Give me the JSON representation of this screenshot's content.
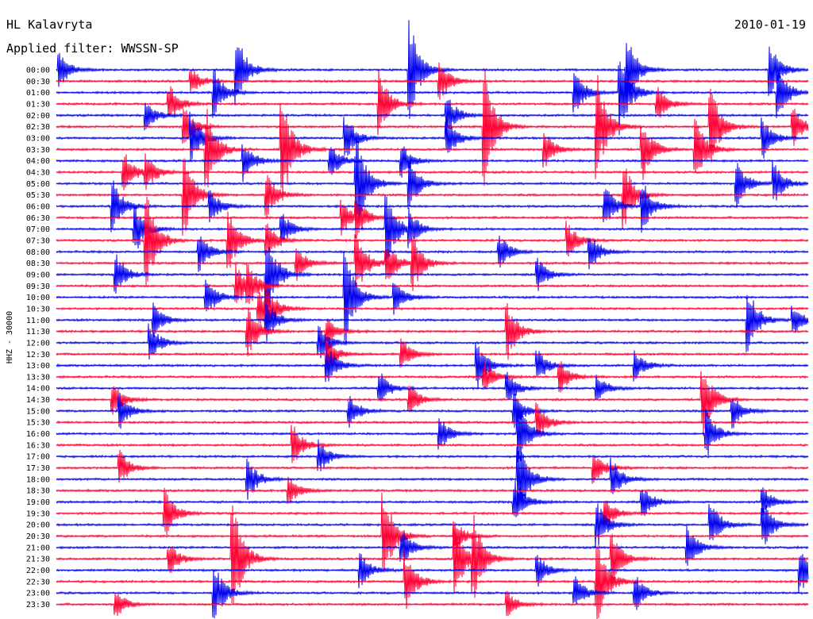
{
  "header": {
    "station": "HL Kalavryta",
    "date": "2010-01-19",
    "filter": "Applied filter: WWSSN-SP"
  },
  "chart_data": {
    "type": "line",
    "title": "HL Kalavryta",
    "subtitle": "Applied filter: WWSSN-SP",
    "ylabel": "HHZ - 30000",
    "row_labels": [
      "00:00",
      "00:30",
      "01:00",
      "01:30",
      "02:00",
      "02:30",
      "03:00",
      "03:30",
      "04:00",
      "04:30",
      "05:00",
      "05:30",
      "06:00",
      "06:30",
      "07:00",
      "07:30",
      "08:00",
      "08:30",
      "09:00",
      "09:30",
      "10:00",
      "10:30",
      "11:00",
      "11:30",
      "12:00",
      "12:30",
      "13:00",
      "13:30",
      "14:00",
      "14:30",
      "15:00",
      "15:30",
      "16:00",
      "16:30",
      "17:00",
      "17:30",
      "18:00",
      "18:30",
      "19:00",
      "19:30",
      "20:00",
      "20:30",
      "21:00",
      "21:30",
      "22:00",
      "22:30",
      "23:00",
      "23:30"
    ],
    "series_colors": [
      "#0000ee",
      "#ff0033"
    ],
    "events": [
      {
        "row": 0,
        "t": 0.005,
        "amp": 1.0
      },
      {
        "row": 0,
        "t": 0.24,
        "amp": 2.2
      },
      {
        "row": 0,
        "t": 0.47,
        "amp": 3.0
      },
      {
        "row": 0,
        "t": 0.76,
        "amp": 2.0
      },
      {
        "row": 0,
        "t": 0.95,
        "amp": 1.5
      },
      {
        "row": 1,
        "t": 0.18,
        "amp": 0.8
      },
      {
        "row": 1,
        "t": 0.51,
        "amp": 1.2
      },
      {
        "row": 2,
        "t": 0.21,
        "amp": 1.5
      },
      {
        "row": 2,
        "t": 0.69,
        "amp": 1.3
      },
      {
        "row": 2,
        "t": 0.75,
        "amp": 2.5
      },
      {
        "row": 2,
        "t": 0.96,
        "amp": 1.6
      },
      {
        "row": 3,
        "t": 0.15,
        "amp": 1.2
      },
      {
        "row": 3,
        "t": 0.43,
        "amp": 2.0
      },
      {
        "row": 3,
        "t": 0.8,
        "amp": 1.0
      },
      {
        "row": 4,
        "t": 0.12,
        "amp": 0.9
      },
      {
        "row": 4,
        "t": 0.52,
        "amp": 1.2
      },
      {
        "row": 5,
        "t": 0.17,
        "amp": 1.2
      },
      {
        "row": 5,
        "t": 0.57,
        "amp": 3.5
      },
      {
        "row": 5,
        "t": 0.72,
        "amp": 3.0
      },
      {
        "row": 5,
        "t": 0.87,
        "amp": 2.5
      },
      {
        "row": 5,
        "t": 0.98,
        "amp": 1.2
      },
      {
        "row": 6,
        "t": 0.18,
        "amp": 1.5
      },
      {
        "row": 6,
        "t": 0.385,
        "amp": 1.4
      },
      {
        "row": 6,
        "t": 0.52,
        "amp": 1.2
      },
      {
        "row": 6,
        "t": 0.94,
        "amp": 1.3
      },
      {
        "row": 7,
        "t": 0.2,
        "amp": 2.5
      },
      {
        "row": 7,
        "t": 0.3,
        "amp": 3.5
      },
      {
        "row": 7,
        "t": 0.65,
        "amp": 1.1
      },
      {
        "row": 7,
        "t": 0.78,
        "amp": 1.8
      },
      {
        "row": 7,
        "t": 0.85,
        "amp": 2.0
      },
      {
        "row": 8,
        "t": 0.25,
        "amp": 1.2
      },
      {
        "row": 8,
        "t": 0.365,
        "amp": 1.0
      },
      {
        "row": 8,
        "t": 0.46,
        "amp": 1.0
      },
      {
        "row": 9,
        "t": 0.09,
        "amp": 1.3
      },
      {
        "row": 9,
        "t": 0.12,
        "amp": 1.0
      },
      {
        "row": 10,
        "t": 0.4,
        "amp": 3.0
      },
      {
        "row": 10,
        "t": 0.47,
        "amp": 1.5
      },
      {
        "row": 10,
        "t": 0.905,
        "amp": 1.4
      },
      {
        "row": 10,
        "t": 0.955,
        "amp": 1.2
      },
      {
        "row": 11,
        "t": 0.17,
        "amp": 2.5
      },
      {
        "row": 11,
        "t": 0.28,
        "amp": 1.3
      },
      {
        "row": 11,
        "t": 0.755,
        "amp": 2.0
      },
      {
        "row": 12,
        "t": 0.075,
        "amp": 1.6
      },
      {
        "row": 12,
        "t": 0.205,
        "amp": 1.0
      },
      {
        "row": 12,
        "t": 0.73,
        "amp": 1.3
      },
      {
        "row": 12,
        "t": 0.78,
        "amp": 1.5
      },
      {
        "row": 13,
        "t": 0.38,
        "amp": 1.0
      },
      {
        "row": 13,
        "t": 0.4,
        "amp": 1.0
      },
      {
        "row": 14,
        "t": 0.105,
        "amp": 1.5
      },
      {
        "row": 14,
        "t": 0.3,
        "amp": 1.0
      },
      {
        "row": 14,
        "t": 0.44,
        "amp": 2.2
      },
      {
        "row": 14,
        "t": 0.47,
        "amp": 1.0
      },
      {
        "row": 15,
        "t": 0.12,
        "amp": 3.0
      },
      {
        "row": 15,
        "t": 0.23,
        "amp": 1.7
      },
      {
        "row": 15,
        "t": 0.28,
        "amp": 1.0
      },
      {
        "row": 15,
        "t": 0.68,
        "amp": 1.1
      },
      {
        "row": 16,
        "t": 0.19,
        "amp": 1.2
      },
      {
        "row": 16,
        "t": 0.59,
        "amp": 1.0
      },
      {
        "row": 16,
        "t": 0.71,
        "amp": 1.1
      },
      {
        "row": 17,
        "t": 0.32,
        "amp": 1.0
      },
      {
        "row": 17,
        "t": 0.4,
        "amp": 1.8
      },
      {
        "row": 17,
        "t": 0.44,
        "amp": 1.3
      },
      {
        "row": 17,
        "t": 0.475,
        "amp": 1.5
      },
      {
        "row": 18,
        "t": 0.08,
        "amp": 1.2
      },
      {
        "row": 18,
        "t": 0.28,
        "amp": 2.7
      },
      {
        "row": 18,
        "t": 0.64,
        "amp": 1.0
      },
      {
        "row": 19,
        "t": 0.24,
        "amp": 1.3
      },
      {
        "row": 19,
        "t": 0.255,
        "amp": 1.0
      },
      {
        "row": 20,
        "t": 0.2,
        "amp": 1.2
      },
      {
        "row": 20,
        "t": 0.385,
        "amp": 2.8
      },
      {
        "row": 20,
        "t": 0.45,
        "amp": 1.0
      },
      {
        "row": 21,
        "t": 0.27,
        "amp": 1.0
      },
      {
        "row": 21,
        "t": 0.28,
        "amp": 1.0
      },
      {
        "row": 22,
        "t": 0.13,
        "amp": 1.0
      },
      {
        "row": 22,
        "t": 0.28,
        "amp": 1.2
      },
      {
        "row": 22,
        "t": 0.92,
        "amp": 2.0
      },
      {
        "row": 22,
        "t": 0.98,
        "amp": 0.9
      },
      {
        "row": 23,
        "t": 0.255,
        "amp": 1.5
      },
      {
        "row": 23,
        "t": 0.36,
        "amp": 0.8
      },
      {
        "row": 23,
        "t": 0.6,
        "amp": 1.8
      },
      {
        "row": 24,
        "t": 0.125,
        "amp": 1.1
      },
      {
        "row": 24,
        "t": 0.35,
        "amp": 1.0
      },
      {
        "row": 25,
        "t": 0.36,
        "amp": 1.0
      },
      {
        "row": 25,
        "t": 0.46,
        "amp": 0.9
      },
      {
        "row": 26,
        "t": 0.36,
        "amp": 1.2
      },
      {
        "row": 26,
        "t": 0.56,
        "amp": 1.4
      },
      {
        "row": 26,
        "t": 0.64,
        "amp": 1.0
      },
      {
        "row": 26,
        "t": 0.77,
        "amp": 0.9
      },
      {
        "row": 27,
        "t": 0.57,
        "amp": 1.0
      },
      {
        "row": 27,
        "t": 0.67,
        "amp": 1.0
      },
      {
        "row": 28,
        "t": 0.43,
        "amp": 1.0
      },
      {
        "row": 28,
        "t": 0.6,
        "amp": 1.0
      },
      {
        "row": 28,
        "t": 0.72,
        "amp": 0.8
      },
      {
        "row": 29,
        "t": 0.075,
        "amp": 1.0
      },
      {
        "row": 29,
        "t": 0.47,
        "amp": 0.9
      },
      {
        "row": 29,
        "t": 0.86,
        "amp": 2.2
      },
      {
        "row": 30,
        "t": 0.085,
        "amp": 1.0
      },
      {
        "row": 30,
        "t": 0.39,
        "amp": 1.0
      },
      {
        "row": 30,
        "t": 0.61,
        "amp": 1.0
      },
      {
        "row": 30,
        "t": 0.9,
        "amp": 1.0
      },
      {
        "row": 31,
        "t": 0.64,
        "amp": 1.1
      },
      {
        "row": 32,
        "t": 0.51,
        "amp": 1.0
      },
      {
        "row": 32,
        "t": 0.615,
        "amp": 2.0
      },
      {
        "row": 32,
        "t": 0.865,
        "amp": 1.5
      },
      {
        "row": 33,
        "t": 0.315,
        "amp": 1.2
      },
      {
        "row": 34,
        "t": 0.35,
        "amp": 1.0
      },
      {
        "row": 35,
        "t": 0.085,
        "amp": 1.0
      },
      {
        "row": 35,
        "t": 0.715,
        "amp": 1.0
      },
      {
        "row": 36,
        "t": 0.255,
        "amp": 1.2
      },
      {
        "row": 36,
        "t": 0.615,
        "amp": 2.5
      },
      {
        "row": 36,
        "t": 0.74,
        "amp": 1.2
      },
      {
        "row": 37,
        "t": 0.31,
        "amp": 0.8
      },
      {
        "row": 38,
        "t": 0.61,
        "amp": 1.4
      },
      {
        "row": 38,
        "t": 0.78,
        "amp": 1.0
      },
      {
        "row": 38,
        "t": 0.94,
        "amp": 0.9
      },
      {
        "row": 39,
        "t": 0.145,
        "amp": 1.5
      },
      {
        "row": 39,
        "t": 0.73,
        "amp": 0.9
      },
      {
        "row": 40,
        "t": 0.72,
        "amp": 1.3
      },
      {
        "row": 40,
        "t": 0.87,
        "amp": 1.5
      },
      {
        "row": 40,
        "t": 0.94,
        "amp": 1.5
      },
      {
        "row": 41,
        "t": 0.435,
        "amp": 3.0
      },
      {
        "row": 41,
        "t": 0.53,
        "amp": 1.0
      },
      {
        "row": 42,
        "t": 0.46,
        "amp": 1.1
      },
      {
        "row": 42,
        "t": 0.84,
        "amp": 1.2
      },
      {
        "row": 43,
        "t": 0.15,
        "amp": 1.0
      },
      {
        "row": 43,
        "t": 0.235,
        "amp": 3.5
      },
      {
        "row": 43,
        "t": 0.53,
        "amp": 2.3
      },
      {
        "row": 43,
        "t": 0.555,
        "amp": 2.3
      },
      {
        "row": 43,
        "t": 0.74,
        "amp": 1.5
      },
      {
        "row": 44,
        "t": 0.405,
        "amp": 1.0
      },
      {
        "row": 44,
        "t": 0.64,
        "amp": 1.0
      },
      {
        "row": 44,
        "t": 0.99,
        "amp": 1.3
      },
      {
        "row": 45,
        "t": 0.465,
        "amp": 1.8
      },
      {
        "row": 45,
        "t": 0.72,
        "amp": 2.5
      },
      {
        "row": 46,
        "t": 0.21,
        "amp": 1.8
      },
      {
        "row": 46,
        "t": 0.69,
        "amp": 1.0
      },
      {
        "row": 46,
        "t": 0.77,
        "amp": 1.1
      },
      {
        "row": 47,
        "t": 0.08,
        "amp": 0.8
      },
      {
        "row": 47,
        "t": 0.6,
        "amp": 0.8
      }
    ]
  }
}
